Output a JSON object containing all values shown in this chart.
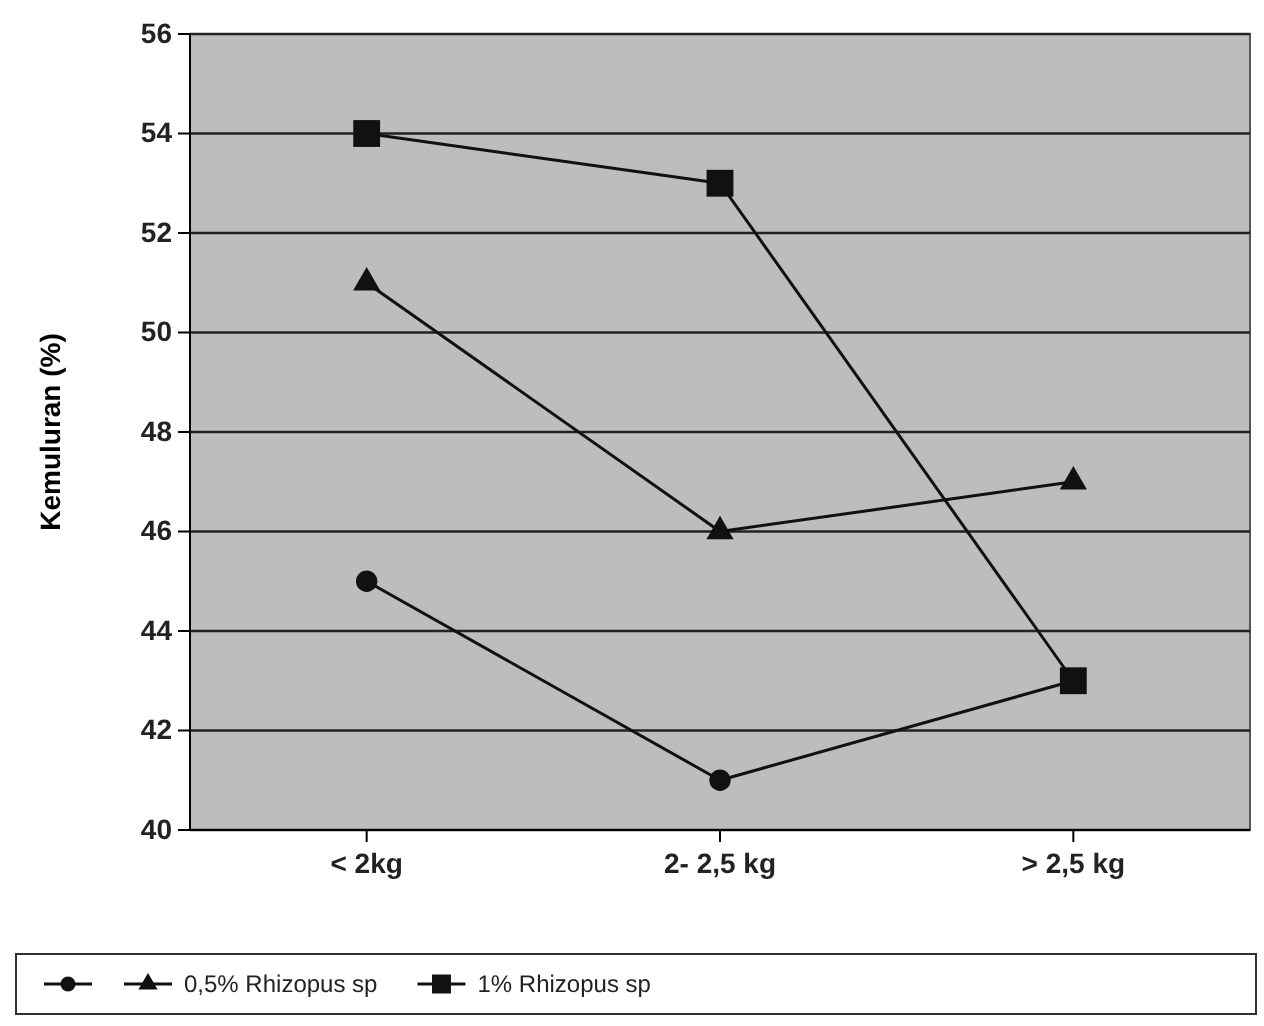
{
  "chart_data": {
    "type": "line",
    "ylabel": "Kemuluran (%)",
    "categories": [
      "< 2kg",
      "2- 2,5 kg",
      "> 2,5 kg"
    ],
    "series": [
      {
        "color": "#111111",
        "marker": "circle",
        "values": [
          45,
          41,
          43
        ]
      },
      {
        "name": "0,5% Rhizopus sp",
        "color": "#111111",
        "marker": "triangle",
        "values": [
          51,
          46,
          47
        ]
      },
      {
        "name": "1% Rhizopus sp",
        "color": "#111111",
        "marker": "square",
        "values": [
          54,
          53,
          43
        ]
      }
    ],
    "ylim": [
      40,
      56
    ],
    "yticks": [
      40,
      42,
      44,
      46,
      48,
      50,
      52,
      54,
      56
    ],
    "grid": "y",
    "legend": "bottom",
    "line_style": "solid"
  }
}
